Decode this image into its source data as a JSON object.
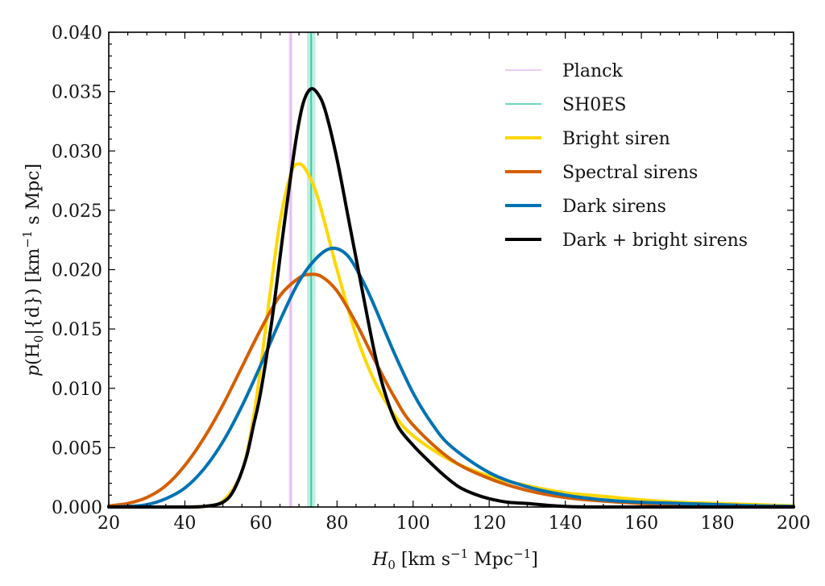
{
  "chart_data": {
    "type": "line",
    "title": "",
    "xlabel": "H_0 [km s^-1 Mpc^-1]",
    "xlabel_parts": {
      "symbol": "H",
      "sub": "0",
      "unit_open": " [km s",
      "sup1": "−1",
      "unit_mid": " Mpc",
      "sup2": "−1",
      "unit_close": "]"
    },
    "ylabel": "p(H_0|{d}) [km^-1 s Mpc]",
    "ylabel_parts": {
      "prefix": "p(H",
      "sub": "0",
      "mid": "|{d}) [km",
      "sup": "−1",
      "suffix": " s Mpc]"
    },
    "xlim": [
      20,
      200
    ],
    "ylim": [
      0,
      0.04
    ],
    "xticks": [
      20,
      40,
      60,
      80,
      100,
      120,
      140,
      160,
      180,
      200
    ],
    "xtick_labels": [
      "20",
      "40",
      "60",
      "80",
      "100",
      "120",
      "140",
      "160",
      "180",
      "200"
    ],
    "yticks": [
      0,
      0.005,
      0.01,
      0.015,
      0.02,
      0.025,
      0.03,
      0.035,
      0.04
    ],
    "ytick_labels": [
      "0.000",
      "0.005",
      "0.010",
      "0.015",
      "0.020",
      "0.025",
      "0.030",
      "0.035",
      "0.040"
    ],
    "grid": false,
    "legend_position": "top-right",
    "bands": [
      {
        "name": "Planck",
        "center": 67.8,
        "halfwidth": 0.5,
        "color": "#e4b8f0",
        "fill": "#f2dcf8"
      },
      {
        "name": "SH0ES",
        "center": 73.2,
        "halfwidth": 1.1,
        "color": "#3ec9a7",
        "fill": "#b3ecdc"
      }
    ],
    "series": [
      {
        "name": "Bright siren",
        "color": "#ffd700",
        "x": [
          20,
          40,
          45,
          50,
          55,
          58,
          60,
          62,
          65,
          68,
          70,
          72,
          75,
          80,
          85,
          90,
          95,
          100,
          110,
          120,
          130,
          140,
          150,
          160,
          170,
          180,
          190,
          200
        ],
        "y": [
          0,
          0,
          5e-05,
          0.0005,
          0.003,
          0.0075,
          0.012,
          0.017,
          0.024,
          0.0282,
          0.0289,
          0.0283,
          0.026,
          0.02,
          0.0145,
          0.0105,
          0.0078,
          0.006,
          0.0039,
          0.0026,
          0.0018,
          0.0012,
          0.0009,
          0.0006,
          0.0004,
          0.0003,
          0.0002,
          0.0001
        ]
      },
      {
        "name": "Spectral sirens",
        "color": "#d55e00",
        "x": [
          20,
          25,
          30,
          35,
          40,
          45,
          50,
          55,
          60,
          65,
          70,
          73,
          76,
          80,
          85,
          90,
          95,
          100,
          110,
          120,
          130,
          140,
          150,
          160,
          170,
          180,
          190,
          200
        ],
        "y": [
          0.0001,
          0.0003,
          0.0008,
          0.0018,
          0.0035,
          0.0058,
          0.0086,
          0.0118,
          0.015,
          0.0178,
          0.0193,
          0.0196,
          0.0194,
          0.0182,
          0.0155,
          0.0123,
          0.0093,
          0.0069,
          0.004,
          0.0024,
          0.0014,
          0.0008,
          0.0005,
          0.0003,
          0.0002,
          0.0001,
          5e-05,
          0
        ]
      },
      {
        "name": "Dark sirens",
        "color": "#0072b2",
        "x": [
          20,
          25,
          30,
          35,
          40,
          45,
          50,
          55,
          60,
          65,
          70,
          75,
          79,
          83,
          87,
          90,
          95,
          100,
          105,
          110,
          120,
          130,
          140,
          150,
          160,
          170,
          180,
          190,
          200
        ],
        "y": [
          0,
          5e-05,
          0.0002,
          0.0007,
          0.0016,
          0.0032,
          0.0055,
          0.0085,
          0.012,
          0.0157,
          0.019,
          0.0211,
          0.0218,
          0.0211,
          0.0189,
          0.0168,
          0.013,
          0.0096,
          0.007,
          0.0051,
          0.0029,
          0.0017,
          0.001,
          0.0006,
          0.0004,
          0.0003,
          0.0002,
          0.0001,
          5e-05
        ]
      },
      {
        "name": "Dark + bright sirens",
        "color": "#000000",
        "x": [
          20,
          40,
          45,
          50,
          53,
          56,
          58,
          60,
          63,
          66,
          69,
          71,
          73,
          75,
          77,
          80,
          83,
          86,
          90,
          93,
          96,
          100,
          104,
          108,
          112,
          116,
          120,
          125,
          130,
          135,
          140,
          150,
          200
        ],
        "y": [
          0,
          0,
          5e-05,
          0.0004,
          0.0015,
          0.004,
          0.0068,
          0.0098,
          0.016,
          0.0235,
          0.0305,
          0.0339,
          0.0352,
          0.0348,
          0.0333,
          0.0293,
          0.0243,
          0.0193,
          0.0128,
          0.0092,
          0.0068,
          0.0052,
          0.0039,
          0.0027,
          0.0017,
          0.0011,
          0.0007,
          0.0004,
          0.0003,
          0.00015,
          5e-05,
          0,
          0
        ]
      }
    ],
    "legend": [
      {
        "label": "Planck",
        "color": "#e4b8f0",
        "kind": "thin"
      },
      {
        "label": "SH0ES",
        "color": "#3ec9a7",
        "kind": "thin"
      },
      {
        "label": "Bright siren",
        "color": "#ffd700",
        "kind": "thick"
      },
      {
        "label": "Spectral sirens",
        "color": "#d55e00",
        "kind": "thick"
      },
      {
        "label": "Dark sirens",
        "color": "#0072b2",
        "kind": "thick"
      },
      {
        "label": "Dark + bright sirens",
        "color": "#000000",
        "kind": "thick"
      }
    ]
  }
}
